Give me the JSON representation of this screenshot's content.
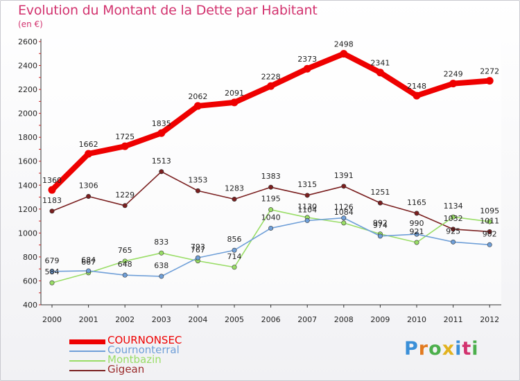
{
  "chart_data": {
    "type": "line",
    "title": "Evolution du Montant de la Dette par Habitant",
    "subtitle": "(en €)",
    "xlabel": "",
    "ylabel": "",
    "ylim": [
      400,
      2600
    ],
    "yticks": [
      400,
      600,
      800,
      1000,
      1200,
      1400,
      1600,
      1800,
      2000,
      2200,
      2400,
      2600
    ],
    "categories": [
      "2000",
      "2001",
      "2002",
      "2003",
      "2004",
      "2005",
      "2006",
      "2007",
      "2008",
      "2009",
      "2010",
      "2011",
      "2012"
    ],
    "series": [
      {
        "name": "COURNONSEC",
        "color": "#ee0000",
        "values": [
          1360,
          1662,
          1725,
          1835,
          2062,
          2091,
          2228,
          2373,
          2498,
          2341,
          2148,
          2249,
          2272
        ]
      },
      {
        "name": "Cournonterral",
        "color": "#6f9fd8",
        "values": [
          679,
          684,
          648,
          638,
          793,
          856,
          1040,
          1104,
          1126,
          974,
          990,
          925,
          902
        ]
      },
      {
        "name": "Montbazin",
        "color": "#99dd66",
        "values": [
          584,
          667,
          765,
          833,
          767,
          714,
          1195,
          1130,
          1084,
          992,
          921,
          1134,
          1095
        ]
      },
      {
        "name": "Gigean",
        "color": "#7a1f1f",
        "values": [
          1183,
          1306,
          1229,
          1513,
          1353,
          1283,
          1383,
          1315,
          1391,
          1251,
          1165,
          1032,
          1011
        ]
      }
    ],
    "legend_position": "bottom-left",
    "grid": false
  },
  "brand": {
    "letters": [
      "P",
      "r",
      "o",
      "x",
      "i",
      "t",
      "i"
    ],
    "colors": [
      "#3a8fd8",
      "#e27a1f",
      "#4caf4c",
      "#e2b21f",
      "#3a8fd8",
      "#d2326e",
      "#4caf4c"
    ]
  }
}
